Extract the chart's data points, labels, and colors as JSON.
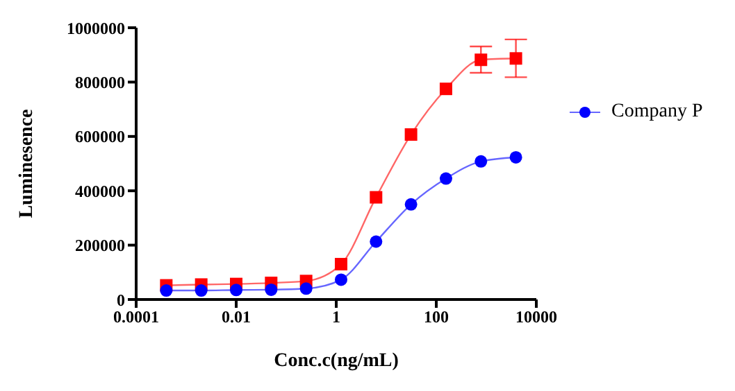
{
  "chart_data": {
    "type": "line",
    "xlabel": "Conc.c(ng/mL)",
    "ylabel": "Luminesence",
    "log": "x",
    "xlim": [
      0.0001,
      10000
    ],
    "xticks": [
      0.0001,
      0.01,
      1,
      100,
      10000
    ],
    "ylim": [
      0,
      1000000
    ],
    "yticks": [
      0,
      200000,
      400000,
      600000,
      800000,
      1000000
    ],
    "grid": false,
    "legend": "right",
    "line_style": "solid",
    "x": [
      0.0004,
      0.002,
      0.01,
      0.05,
      0.25,
      1.25,
      6.25,
      31.25,
      156.25,
      781.25,
      3906
    ],
    "series": [
      {
        "color": "#ff0000",
        "marker": "square",
        "values": [
          52000,
          55000,
          57000,
          61000,
          68000,
          130000,
          376000,
          607000,
          775000,
          882000,
          887000
        ],
        "errors": [
          null,
          null,
          null,
          null,
          null,
          null,
          null,
          null,
          null,
          [
            834000,
            931000
          ],
          [
            818000,
            957000
          ]
        ]
      },
      {
        "name": "Company P",
        "color": "#0000ff",
        "marker": "circle",
        "values": [
          33000,
          33000,
          35000,
          36000,
          40000,
          73000,
          213000,
          350000,
          445000,
          508000,
          523000
        ]
      }
    ]
  }
}
